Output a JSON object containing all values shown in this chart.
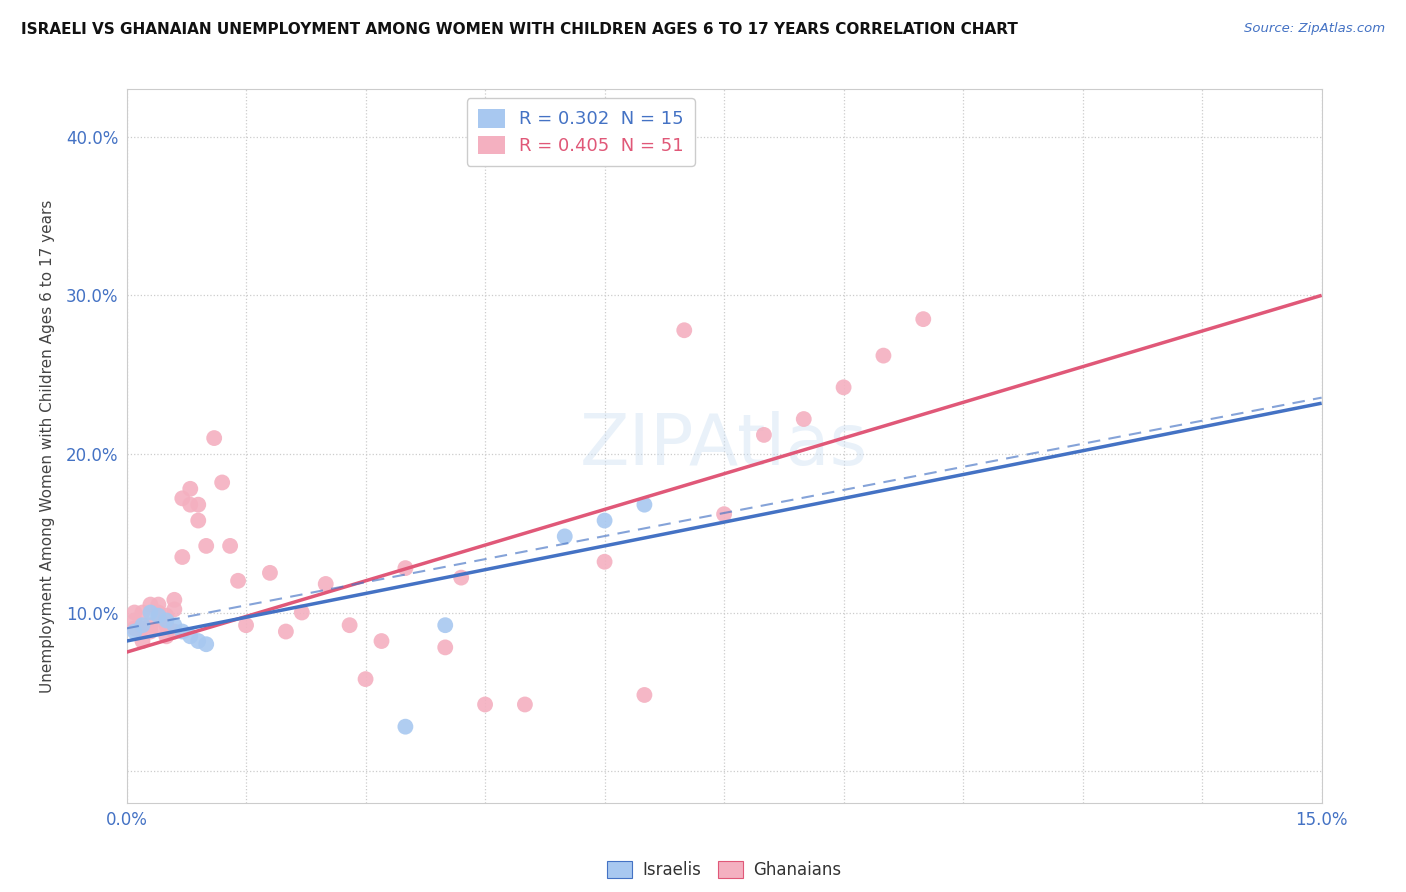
{
  "title": "ISRAELI VS GHANAIAN UNEMPLOYMENT AMONG WOMEN WITH CHILDREN AGES 6 TO 17 YEARS CORRELATION CHART",
  "source": "Source: ZipAtlas.com",
  "ylabel": "Unemployment Among Women with Children Ages 6 to 17 years",
  "xlim": [
    0.0,
    0.15
  ],
  "ylim": [
    -0.02,
    0.43
  ],
  "xticks": [
    0.0,
    0.015,
    0.03,
    0.045,
    0.06,
    0.075,
    0.09,
    0.105,
    0.12,
    0.135,
    0.15
  ],
  "ytick_vals": [
    0.0,
    0.1,
    0.2,
    0.3,
    0.4
  ],
  "ytick_labels": [
    "",
    "10.0%",
    "20.0%",
    "30.0%",
    "40.0%"
  ],
  "xtick_labels": [
    "0.0%",
    "",
    "",
    "",
    "",
    "",
    "",
    "",
    "",
    "",
    "15.0%"
  ],
  "legend_r1": "R = 0.302  N = 15",
  "legend_r2": "R = 0.405  N = 51",
  "legend_label1": "Israelis",
  "legend_label2": "Ghanaians",
  "israeli_color": "#a8c8f0",
  "ghanaian_color": "#f4b0c0",
  "israeli_line_color": "#4472c4",
  "ghanaian_line_color": "#e05878",
  "background_color": "#ffffff",
  "israeli_x": [
    0.001,
    0.002,
    0.003,
    0.004,
    0.005,
    0.006,
    0.007,
    0.008,
    0.009,
    0.01,
    0.055,
    0.06,
    0.065,
    0.035,
    0.04
  ],
  "israeli_y": [
    0.088,
    0.092,
    0.1,
    0.098,
    0.095,
    0.092,
    0.088,
    0.085,
    0.082,
    0.08,
    0.148,
    0.158,
    0.168,
    0.028,
    0.092
  ],
  "ghanaian_x": [
    0.001,
    0.001,
    0.001,
    0.002,
    0.002,
    0.002,
    0.003,
    0.003,
    0.003,
    0.004,
    0.004,
    0.004,
    0.005,
    0.005,
    0.005,
    0.006,
    0.006,
    0.006,
    0.007,
    0.007,
    0.008,
    0.008,
    0.009,
    0.009,
    0.01,
    0.011,
    0.012,
    0.013,
    0.014,
    0.015,
    0.018,
    0.02,
    0.022,
    0.025,
    0.028,
    0.03,
    0.032,
    0.035,
    0.04,
    0.042,
    0.045,
    0.05,
    0.06,
    0.065,
    0.07,
    0.075,
    0.08,
    0.085,
    0.09,
    0.095,
    0.1
  ],
  "ghanaian_y": [
    0.09,
    0.095,
    0.1,
    0.082,
    0.09,
    0.1,
    0.088,
    0.092,
    0.105,
    0.09,
    0.1,
    0.105,
    0.085,
    0.092,
    0.098,
    0.088,
    0.102,
    0.108,
    0.135,
    0.172,
    0.178,
    0.168,
    0.158,
    0.168,
    0.142,
    0.21,
    0.182,
    0.142,
    0.12,
    0.092,
    0.125,
    0.088,
    0.1,
    0.118,
    0.092,
    0.058,
    0.082,
    0.128,
    0.078,
    0.122,
    0.042,
    0.042,
    0.132,
    0.048,
    0.278,
    0.162,
    0.212,
    0.222,
    0.242,
    0.262,
    0.285
  ],
  "i_intercept": 0.082,
  "i_slope": 1.0,
  "g_intercept": 0.075,
  "g_slope": 1.5,
  "d_intercept": 0.09,
  "d_slope": 0.97
}
